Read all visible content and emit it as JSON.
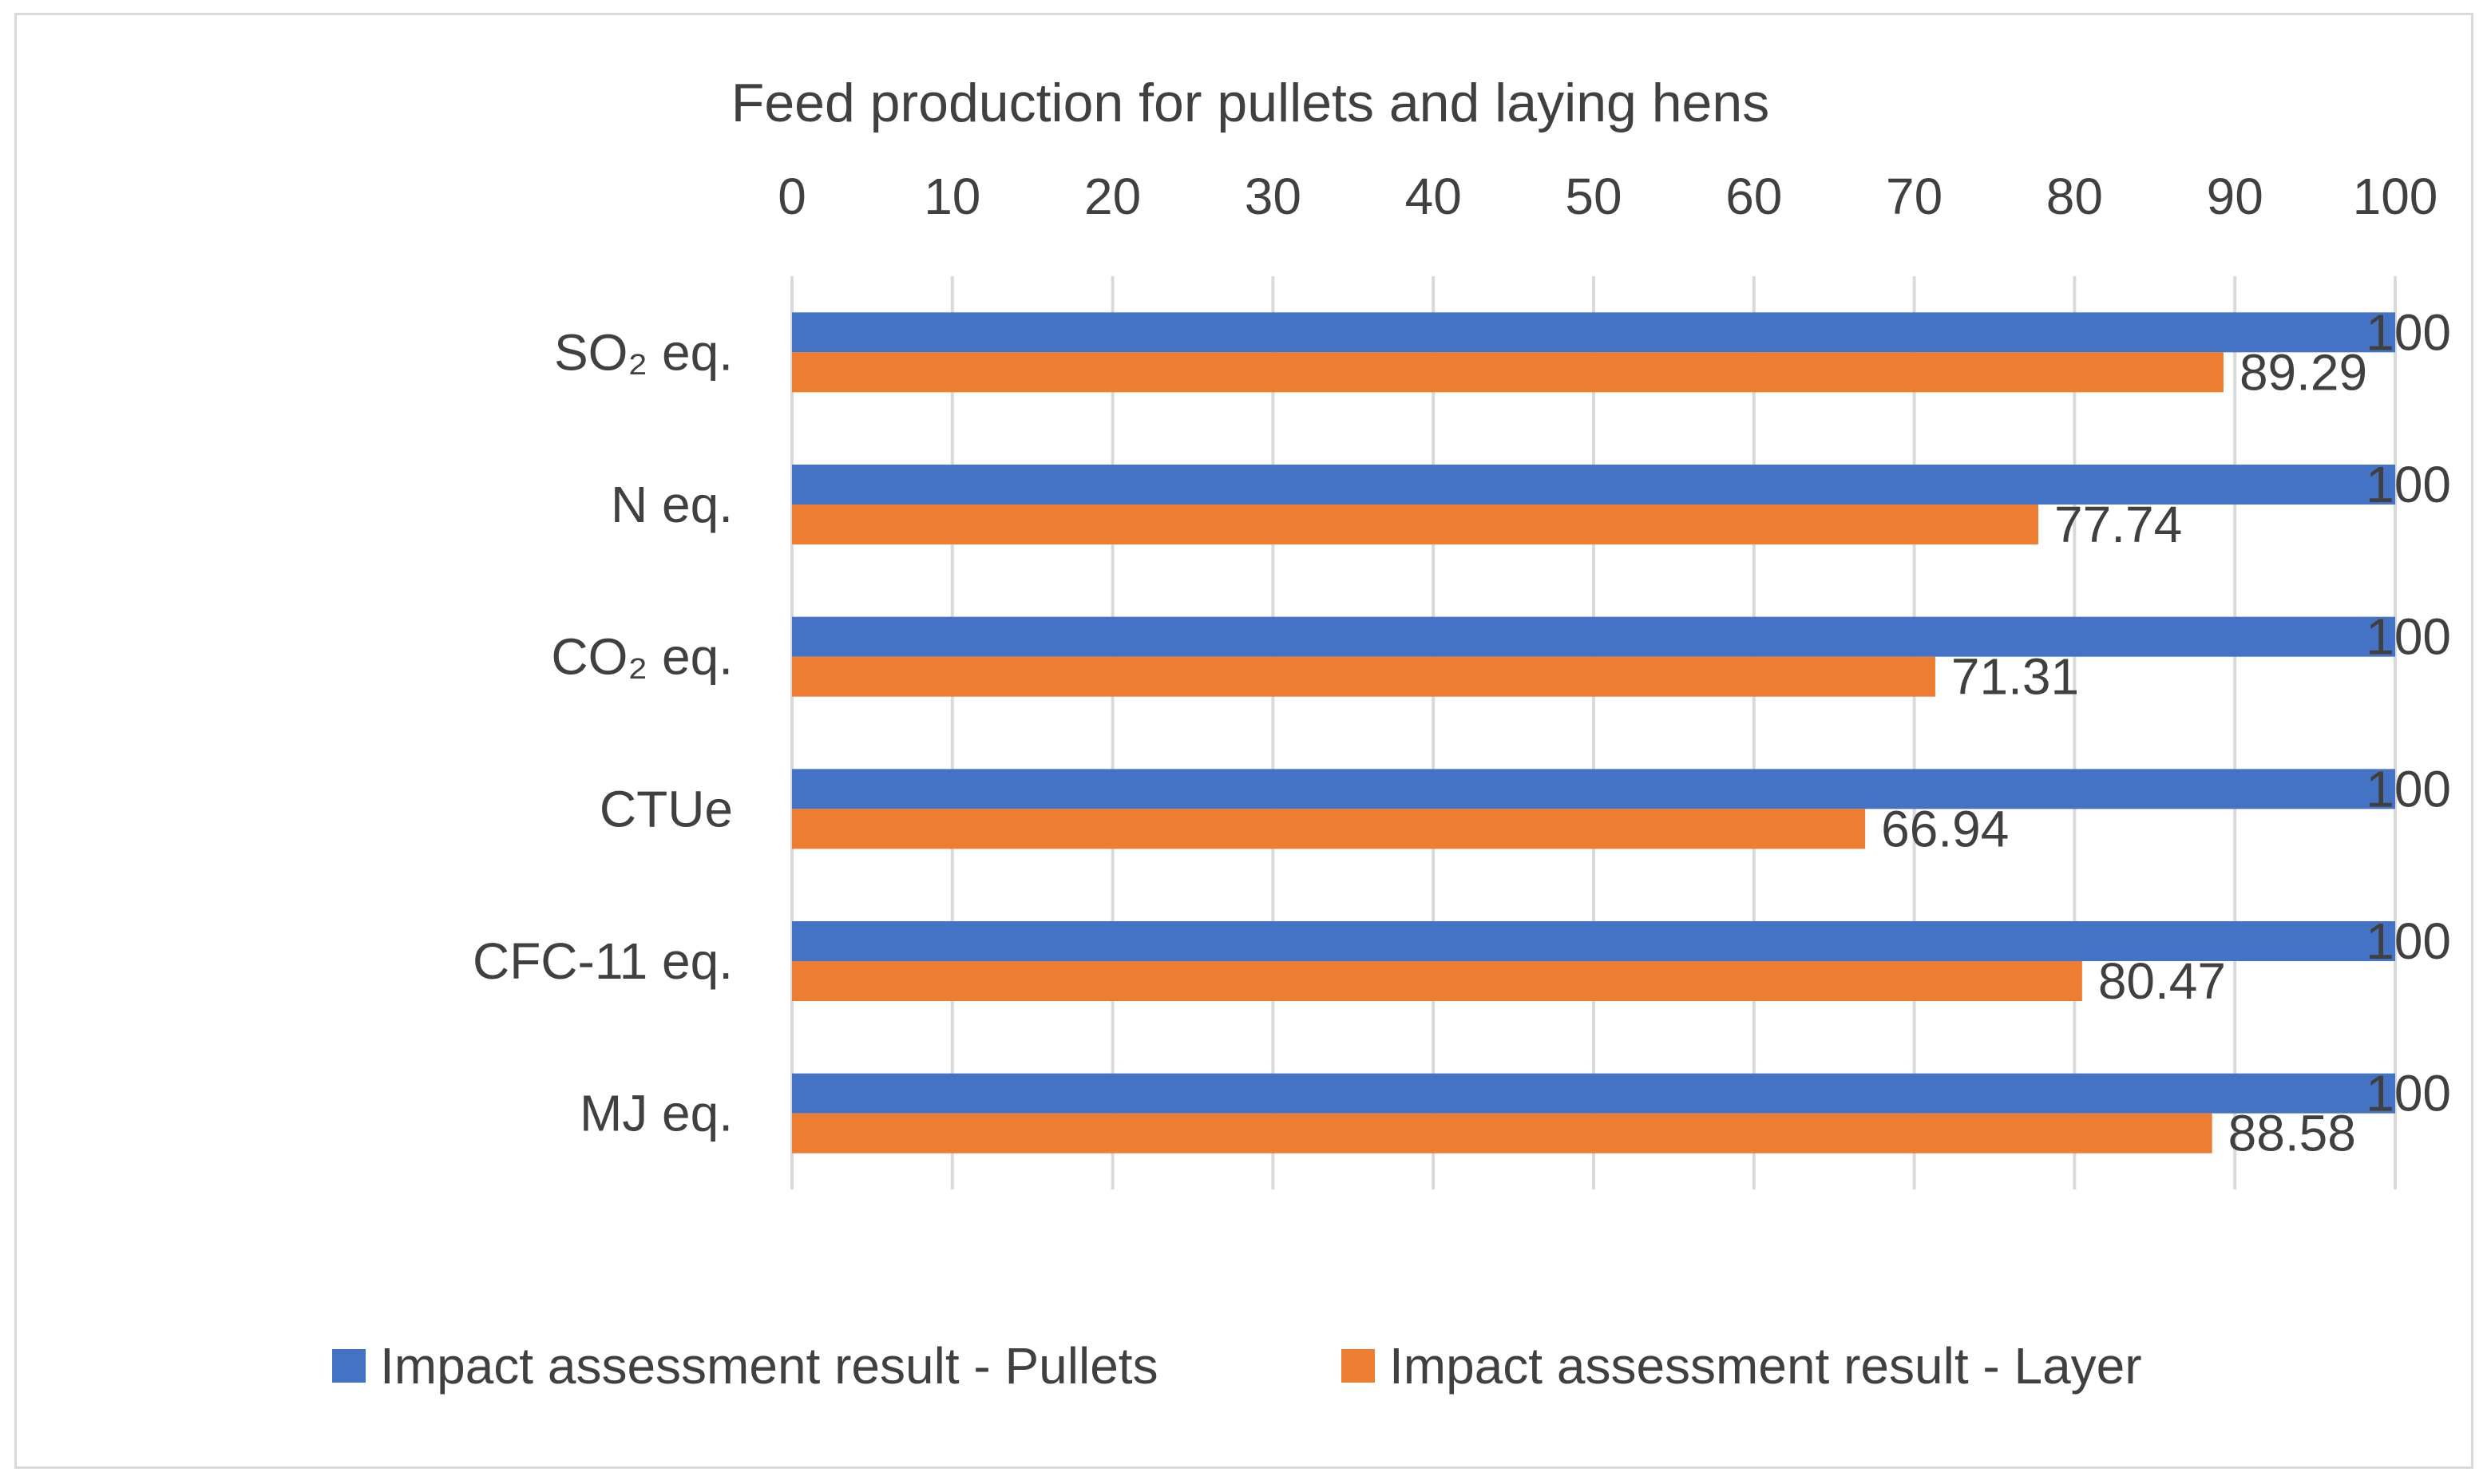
{
  "chart_data": {
    "type": "bar",
    "orientation": "horizontal",
    "title": "Feed production for pullets and laying hens",
    "xlabel": "",
    "ylabel": "",
    "xlim": [
      0,
      100
    ],
    "ticks": [
      "0",
      "10",
      "20",
      "30",
      "40",
      "50",
      "60",
      "70",
      "80",
      "90",
      "100"
    ],
    "categories": [
      "SO₂ eq.",
      "N eq.",
      "CO₂ eq.",
      "CTUe",
      "CFC-11 eq.",
      "MJ eq."
    ],
    "series": [
      {
        "name": "Impact assessment result - Pullets",
        "color": "#4472c4",
        "values": [
          100,
          100,
          100,
          100,
          100,
          100
        ],
        "labels": [
          "100",
          "100",
          "100",
          "100",
          "100",
          "100"
        ]
      },
      {
        "name": "Impact assessment result - Layer",
        "color": "#ed7d31",
        "values": [
          89.29,
          77.74,
          71.31,
          66.94,
          80.47,
          88.58
        ],
        "labels": [
          "89.29",
          "77.74",
          "71.31",
          "66.94",
          "80.47",
          "88.58"
        ]
      }
    ],
    "grid": true,
    "legend": "bottom",
    "colors": {
      "text": "#404040",
      "grid": "#d9d9d9",
      "border": "#d9d9d9"
    }
  }
}
